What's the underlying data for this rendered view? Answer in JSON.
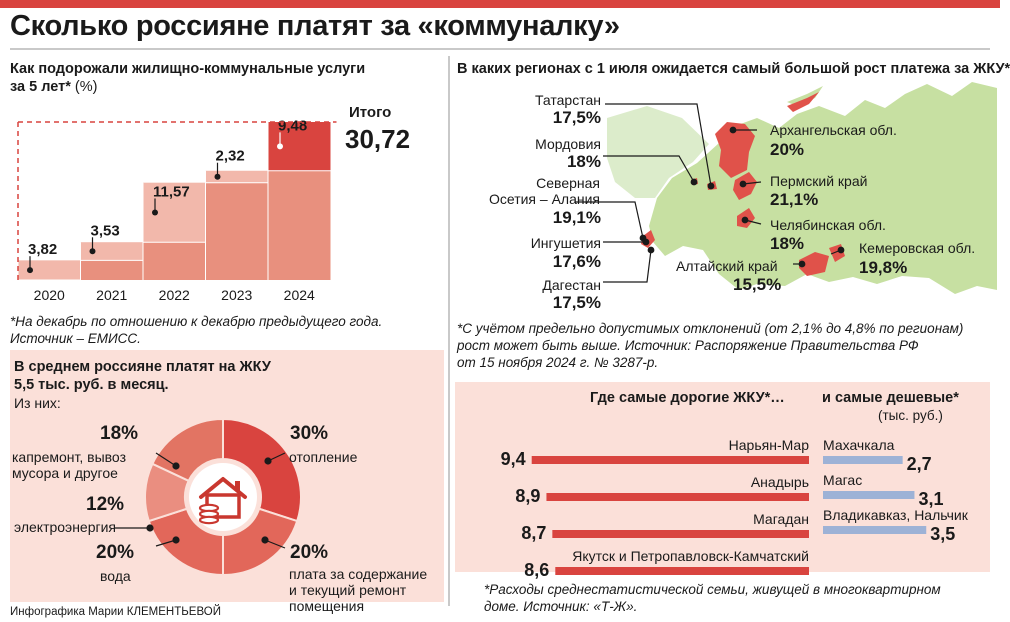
{
  "page": {
    "title": "Сколько россияне платят за «коммуналку»",
    "credit": "Инфографика Марии КЛЕМЕНТЬЕВОЙ"
  },
  "growth": {
    "heading_line1": "Как подорожали жилищно-коммунальные услуги",
    "heading_line2": "за 5 лет*",
    "heading_unit": "(%)",
    "total_label": "Итого",
    "total_value": "30,72",
    "note_line1": "*На декабрь по отношению к декабрю предыдущего года.",
    "note_line2": "Источник – ЕМИСС."
  },
  "regions": {
    "heading": "В каких регионах с 1 июля ожидается самый большой рост платежа за ЖКУ*",
    "note_line1": "*С учётом предельно допустимых отклонений (от 2,1% до 4,8% по регионам)",
    "note_line2": "рост может быть выше. Источник: Распоряжение Правительства РФ",
    "note_line3": "от 15 ноября 2024 г. № 3287-р.",
    "items": [
      {
        "name": "Татарстан",
        "value": "17,5%"
      },
      {
        "name": "Мордовия",
        "value": "18%"
      },
      {
        "name_line1": "Северная",
        "name_line2": "Осетия – Алания",
        "value": "19,1%"
      },
      {
        "name": "Ингушетия",
        "value": "17,6%"
      },
      {
        "name": "Дагестан",
        "value": "17,5%"
      },
      {
        "name": "Архангельская обл.",
        "value": "20%"
      },
      {
        "name": "Пермский край",
        "value": "21,1%"
      },
      {
        "name": "Челябинская обл.",
        "value": "18%"
      },
      {
        "name": "Алтайский край",
        "value": "15,5%"
      },
      {
        "name": "Кемеровская обл.",
        "value": "19,8%"
      }
    ]
  },
  "structure": {
    "heading_line1": "В среднем россияне платят на ЖКУ",
    "heading_line2": "5,5 тыс. руб. в месяц.",
    "sub": "Из них:",
    "items": [
      {
        "pct": "18%",
        "label_line1": "капремонт, вывоз",
        "label_line2": "мусора и другое"
      },
      {
        "pct": "12%",
        "label_line1": "электроэнергия"
      },
      {
        "pct": "20%",
        "label_line1": "вода"
      },
      {
        "pct": "30%",
        "label_line1": "отопление"
      },
      {
        "pct": "20%",
        "label_line1": "плата за содержание",
        "label_line2": "и текущий ремонт",
        "label_line3": "помещения"
      }
    ]
  },
  "cities": {
    "heading_expensive": "Где самые дорогие ЖКУ*…",
    "heading_cheap": "и самые дешевые*",
    "unit": "(тыс. руб.)",
    "note_line1": "*Расходы среднестатистической семьи, живущей в многоквартирном",
    "note_line2": "доме. Источник: «Т-Ж»."
  },
  "colors": {
    "accent": "#d9443f",
    "bar_fill": "#e8907e",
    "bar_light": "#f2b8ab",
    "cheap_bar": "#9db2d6",
    "map_green": "#c7e0a2",
    "map_region": "#e0524a",
    "panel_bg": "#fbe0d9"
  },
  "chart_data": [
    {
      "type": "bar",
      "title": "Как подорожали жилищно-коммунальные услуги за 5 лет* (%)",
      "categories": [
        "2020",
        "2021",
        "2022",
        "2023",
        "2024"
      ],
      "values": [
        3.82,
        3.53,
        11.57,
        2.32,
        9.48
      ],
      "value_labels": [
        "3,82",
        "3,53",
        "11,57",
        "2,32",
        "9,48"
      ],
      "stacked_cumulative": true,
      "total": 30.72
    },
    {
      "type": "pie",
      "title": "В среднем россияне платят на ЖКУ 5,5 тыс. руб. в месяц.",
      "categories": [
        "отопление",
        "плата за содержание и текущий ремонт помещения",
        "вода",
        "электроэнергия",
        "капремонт, вывоз мусора и другое"
      ],
      "values": [
        30,
        20,
        20,
        12,
        18
      ]
    },
    {
      "type": "bar",
      "title": "Где самые дорогие ЖКУ*…",
      "orientation": "horizontal",
      "categories": [
        "Нарьян-Мар",
        "Анадырь",
        "Магадан",
        "Якутск и Петропавловск-Камчатский"
      ],
      "values": [
        9.4,
        8.9,
        8.7,
        8.6
      ],
      "value_labels": [
        "9,4",
        "8,9",
        "8,7",
        "8,6"
      ],
      "unit": "(тыс. руб.)"
    },
    {
      "type": "bar",
      "title": "и самые дешевые*",
      "orientation": "horizontal",
      "categories": [
        "Махачкала",
        "Магас",
        "Владикавказ, Нальчик"
      ],
      "values": [
        2.7,
        3.1,
        3.5
      ],
      "value_labels": [
        "2,7",
        "3,1",
        "3,5"
      ],
      "unit": "(тыс. руб.)"
    }
  ]
}
